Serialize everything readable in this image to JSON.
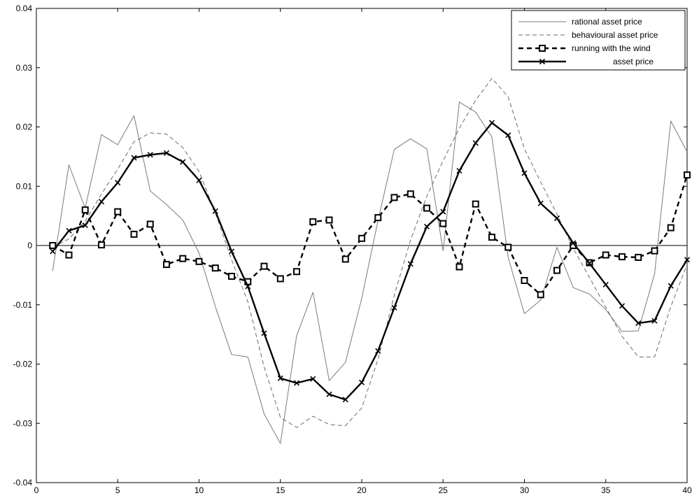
{
  "chart_data": {
    "type": "line",
    "title": "",
    "xlabel": "",
    "ylabel": "",
    "xlim": [
      0,
      40
    ],
    "ylim": [
      -0.04,
      0.04
    ],
    "xticks": [
      0,
      5,
      10,
      15,
      20,
      25,
      30,
      35,
      40
    ],
    "xtick_labels": [
      "0",
      "5",
      "10",
      "15",
      "20",
      "25",
      "30",
      "35",
      "40"
    ],
    "yticks": [
      -0.04,
      -0.03,
      -0.02,
      -0.01,
      0,
      0.01,
      0.02,
      0.03,
      0.04
    ],
    "ytick_labels": [
      "-0.04",
      "-0.03",
      "-0.02",
      "-0.01",
      "0",
      "0.01",
      "0.02",
      "0.03",
      "0.04"
    ],
    "zero_line": true,
    "grid": false,
    "legend_position": "top-right",
    "x": [
      1,
      2,
      3,
      4,
      5,
      6,
      7,
      8,
      9,
      10,
      11,
      12,
      13,
      14,
      15,
      16,
      17,
      18,
      19,
      20,
      21,
      22,
      23,
      24,
      25,
      26,
      27,
      28,
      29,
      30,
      31,
      32,
      33,
      34,
      35,
      36,
      37,
      38,
      39,
      40
    ],
    "series": [
      {
        "name": "rational asset price",
        "style": "thin-solid",
        "color": "#7a7a7a",
        "values": [
          -0.0043,
          0.0136,
          0.0063,
          0.0187,
          0.017,
          0.0219,
          0.0092,
          0.0069,
          0.0043,
          -0.0013,
          -0.0103,
          -0.0184,
          -0.0188,
          -0.0284,
          -0.0334,
          -0.0152,
          -0.0079,
          -0.0228,
          -0.0197,
          -0.0089,
          0.0042,
          0.0162,
          0.018,
          0.0163,
          -0.0009,
          0.0242,
          0.0225,
          0.0183,
          -0.002,
          -0.0115,
          -0.0092,
          -0.0003,
          -0.0071,
          -0.0082,
          -0.0108,
          -0.0145,
          -0.0144,
          -0.0048,
          0.021,
          0.0158
        ]
      },
      {
        "name": "behavioural asset price",
        "style": "thin-dashed",
        "color": "#6a6a6a",
        "values": [
          -0.0003,
          0.0011,
          0.0041,
          0.0087,
          0.0129,
          0.0175,
          0.019,
          0.0188,
          0.0165,
          0.0125,
          0.0055,
          -0.0024,
          -0.0095,
          -0.0205,
          -0.029,
          -0.0307,
          -0.0288,
          -0.0302,
          -0.0304,
          -0.0274,
          -0.0192,
          -0.0084,
          0.0009,
          0.0083,
          0.0143,
          0.0198,
          0.0245,
          0.0282,
          0.0251,
          0.0163,
          0.0107,
          0.0053,
          -0.0005,
          -0.0054,
          -0.0104,
          -0.0153,
          -0.0188,
          -0.0188,
          -0.0103,
          -0.0032
        ]
      },
      {
        "name": "running with the wind",
        "style": "thick-dashed-square",
        "color": "#000000",
        "values": [
          0.0,
          -0.0016,
          0.006,
          0.0001,
          0.0057,
          0.0019,
          0.0036,
          -0.0032,
          -0.0022,
          -0.0027,
          -0.0038,
          -0.0052,
          -0.0061,
          -0.0035,
          -0.0056,
          -0.0044,
          0.004,
          0.0043,
          -0.0023,
          0.0012,
          0.0047,
          0.0081,
          0.0087,
          0.0063,
          0.0037,
          -0.0036,
          0.007,
          0.0014,
          -0.0003,
          -0.0059,
          -0.0083,
          -0.0042,
          0.0,
          -0.0029,
          -0.0016,
          -0.0019,
          -0.002,
          -0.0009,
          0.003,
          0.0119
        ]
      },
      {
        "name": "asset price",
        "style": "thick-solid-x",
        "color": "#000000",
        "values": [
          -0.001,
          0.0025,
          0.0034,
          0.0074,
          0.0106,
          0.0148,
          0.0153,
          0.0156,
          0.0141,
          0.011,
          0.0058,
          -0.001,
          -0.0069,
          -0.0148,
          -0.0224,
          -0.0232,
          -0.0225,
          -0.0251,
          -0.026,
          -0.0231,
          -0.0178,
          -0.0105,
          -0.0031,
          0.0032,
          0.0057,
          0.0126,
          0.0173,
          0.0207,
          0.0186,
          0.0122,
          0.0071,
          0.0046,
          0.0004,
          -0.003,
          -0.0066,
          -0.0102,
          -0.0131,
          -0.0127,
          -0.0068,
          -0.0024
        ]
      }
    ]
  }
}
